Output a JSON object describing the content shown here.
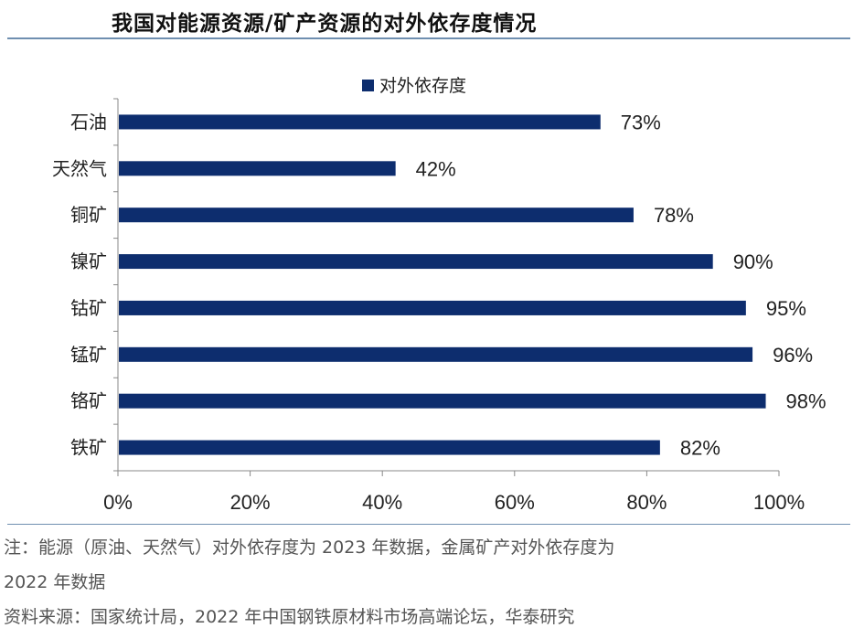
{
  "title": "我国对能源资源/矿产资源的对外依存度情况",
  "chart_data": {
    "type": "bar",
    "orientation": "horizontal",
    "categories": [
      "石油",
      "天然气",
      "铜矿",
      "镍矿",
      "钴矿",
      "锰矿",
      "铬矿",
      "铁矿"
    ],
    "series": [
      {
        "name": "对外依存度",
        "values": [
          73,
          42,
          78,
          90,
          95,
          96,
          98,
          82
        ],
        "color": "#0d2d6e"
      }
    ],
    "data_labels": [
      "73%",
      "42%",
      "78%",
      "90%",
      "95%",
      "96%",
      "98%",
      "82%"
    ],
    "xlim": [
      0,
      100
    ],
    "xticks": [
      "0%",
      "20%",
      "40%",
      "60%",
      "80%",
      "100%"
    ],
    "xtick_values": [
      0,
      20,
      40,
      60,
      80,
      100
    ],
    "legend_position": "top-center",
    "grid": false
  },
  "note_line1": "注：能源（原油、天然气）对外依存度为 2023 年数据，金属矿产对外依存度为",
  "note_line2": "2022 年数据",
  "source": "资料来源：国家统计局，2022 年中国钢铁原材料市场高端论坛，华泰研究"
}
